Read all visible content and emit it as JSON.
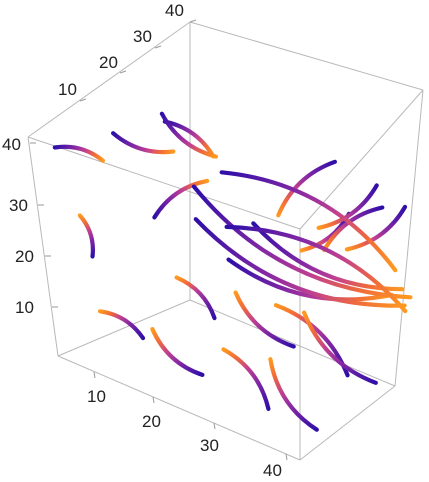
{
  "chart_data": {
    "type": "3d-stream-plot",
    "title": "",
    "xlabel": "",
    "ylabel": "",
    "zlabel": "",
    "axis_ranges": {
      "x": [
        0,
        40
      ],
      "y": [
        0,
        40
      ],
      "z": [
        0,
        40
      ]
    },
    "ticks": {
      "x": [
        "10",
        "20",
        "30",
        "40"
      ],
      "y": [
        "10",
        "20",
        "30",
        "40"
      ],
      "z": [
        "10",
        "20",
        "30",
        "40"
      ]
    },
    "grid": false,
    "box": true,
    "color_scale": [
      "#2e0fa8",
      "#5a1ba6",
      "#8a2aa3",
      "#c04090",
      "#f06a3a",
      "#ff9a20"
    ],
    "streamlines": [
      {
        "start": [
          8,
          12,
          4
        ],
        "end": [
          6,
          4,
          10
        ]
      },
      {
        "start": [
          20,
          8,
          4
        ],
        "end": [
          16,
          2,
          12
        ]
      },
      {
        "start": [
          32,
          6,
          4
        ],
        "end": [
          28,
          2,
          14
        ]
      },
      {
        "start": [
          40,
          6,
          4
        ],
        "end": [
          36,
          2,
          16
        ]
      },
      {
        "start": [
          10,
          30,
          4
        ],
        "end": [
          8,
          24,
          12
        ]
      },
      {
        "start": [
          22,
          32,
          4
        ],
        "end": [
          18,
          24,
          14
        ]
      },
      {
        "start": [
          32,
          30,
          4
        ],
        "end": [
          26,
          22,
          16
        ]
      },
      {
        "start": [
          38,
          28,
          6
        ],
        "end": [
          32,
          20,
          18
        ]
      },
      {
        "start": [
          6,
          4,
          20
        ],
        "end": [
          6,
          2,
          28
        ]
      },
      {
        "start": [
          8,
          20,
          24
        ],
        "end": [
          12,
          30,
          30
        ]
      },
      {
        "start": [
          20,
          20,
          22
        ],
        "end": [
          38,
          36,
          20
        ]
      },
      {
        "start": [
          2,
          4,
          38
        ],
        "end": [
          4,
          14,
          34
        ]
      },
      {
        "start": [
          4,
          18,
          38
        ],
        "end": [
          8,
          28,
          34
        ]
      },
      {
        "start": [
          6,
          30,
          38
        ],
        "end": [
          10,
          36,
          32
        ]
      },
      {
        "start": [
          2,
          36,
          36
        ],
        "end": [
          8,
          40,
          30
        ]
      },
      {
        "start": [
          30,
          40,
          30
        ],
        "end": [
          22,
          38,
          20
        ]
      },
      {
        "start": [
          36,
          40,
          34
        ],
        "end": [
          26,
          38,
          22
        ]
      },
      {
        "start": [
          40,
          40,
          36
        ],
        "end": [
          30,
          38,
          24
        ]
      },
      {
        "start": [
          30,
          38,
          40
        ],
        "end": [
          20,
          36,
          26
        ]
      },
      {
        "start": [
          38,
          36,
          40
        ],
        "end": [
          28,
          34,
          28
        ]
      },
      {
        "start": [
          24,
          22,
          30
        ],
        "end": [
          40,
          36,
          22
        ]
      },
      {
        "start": [
          16,
          28,
          34
        ],
        "end": [
          38,
          38,
          24
        ]
      },
      {
        "start": [
          12,
          26,
          30
        ],
        "end": [
          40,
          38,
          20
        ]
      },
      {
        "start": [
          18,
          24,
          26
        ],
        "end": [
          40,
          36,
          18
        ]
      },
      {
        "start": [
          14,
          22,
          26
        ],
        "end": [
          40,
          36,
          19
        ]
      }
    ]
  }
}
